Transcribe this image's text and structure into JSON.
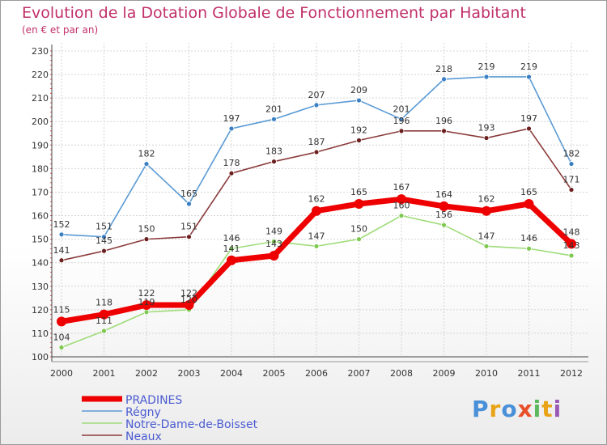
{
  "title": "Evolution de la Dotation Globale de Fonctionnement par Habitant",
  "subtitle": "(en € et par an)",
  "logo": {
    "text": "Proxiti",
    "colors": [
      "#4a90d9",
      "#e8a317",
      "#4a90d9",
      "#e8502a",
      "#5cb85c",
      "#e8a317",
      "#9b59b6"
    ]
  },
  "chart_data": {
    "type": "line",
    "title": "Evolution de la Dotation Globale de Fonctionnement par Habitant",
    "subtitle": "(en € et par an)",
    "x": [
      "2000",
      "2001",
      "2002",
      "2003",
      "2004",
      "2005",
      "2006",
      "2007",
      "2008",
      "2009",
      "2010",
      "2011",
      "2012"
    ],
    "ylim": [
      100,
      230
    ],
    "yticks": [
      "100",
      "110",
      "120",
      "130",
      "140",
      "150",
      "160",
      "170",
      "180",
      "190",
      "200",
      "210",
      "220",
      "230"
    ],
    "grid": true,
    "legend_position": "bottom-left",
    "series": [
      {
        "name": "Régny",
        "color": "#5b9bd5",
        "marker_color": "#3a7fc4",
        "width": 1.6,
        "marker": 3,
        "values": [
          152,
          151,
          182,
          165,
          197,
          201,
          207,
          209,
          201,
          218,
          219,
          219,
          182
        ]
      },
      {
        "name": "Neaux",
        "color": "#8b3a3a",
        "marker_color": "#6b1f1f",
        "width": 1.6,
        "marker": 3,
        "values": [
          141,
          145,
          150,
          151,
          178,
          183,
          187,
          192,
          196,
          196,
          193,
          197,
          171
        ]
      },
      {
        "name": "Notre-Dame-de-Boisset",
        "color": "#9fdc7a",
        "marker_color": "#7ec850",
        "width": 1.6,
        "marker": 3,
        "values": [
          104,
          111,
          119,
          120,
          146,
          149,
          147,
          150,
          160,
          156,
          147,
          146,
          143
        ]
      },
      {
        "name": "PRADINES",
        "color": "#ee0000",
        "marker_color": "#ee0000",
        "width": 7,
        "marker": 6,
        "values": [
          115,
          118,
          122,
          122,
          141,
          143,
          162,
          165,
          167,
          164,
          162,
          165,
          148
        ]
      }
    ],
    "labels": {
      "Régny": [
        "152",
        "151",
        "182",
        "165",
        "197",
        "201",
        "207",
        "209",
        "201",
        "218",
        "219",
        "219",
        "182"
      ],
      "Neaux": [
        "141",
        "145",
        "150",
        "151",
        "178",
        "183",
        "187",
        "192",
        "196",
        "196",
        "193",
        "197",
        "171"
      ],
      "Notre-Dame-de-Boisset": [
        "104",
        "111",
        "119",
        "120",
        "146",
        "149",
        "147",
        "150",
        "160",
        "156",
        "147",
        "146",
        "143"
      ],
      "PRADINES": [
        "115",
        "118",
        "122",
        "122",
        "141",
        "143",
        "162",
        "165",
        "167",
        "164",
        "162",
        "165",
        "148"
      ]
    },
    "legend": [
      "PRADINES",
      "Régny",
      "Notre-Dame-de-Boisset",
      "Neaux"
    ]
  }
}
